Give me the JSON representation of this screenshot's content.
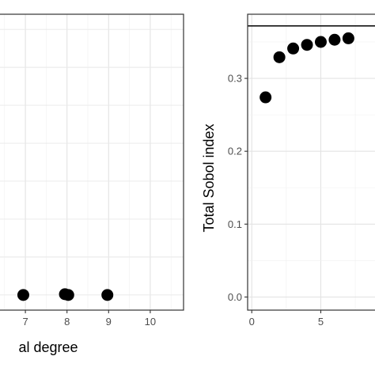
{
  "chart_data": [
    {
      "type": "scatter",
      "panel": "left",
      "xlabel": "al degree",
      "ylabel": "",
      "xlim": [
        6.2,
        10.8
      ],
      "ylim": [
        -0.02,
        0.37
      ],
      "x_ticks": [
        {
          "value": 7,
          "label": "7"
        },
        {
          "value": 8,
          "label": "8"
        },
        {
          "value": 9,
          "label": "9"
        },
        {
          "value": 10,
          "label": "10"
        }
      ],
      "y_ticks": [],
      "minor_x": [
        6.5,
        7.5,
        8.5,
        9.5,
        10.5
      ],
      "grid_y": [
        0.0,
        0.05,
        0.1,
        0.15,
        0.2,
        0.25,
        0.3,
        0.35
      ],
      "grid": true,
      "points": [
        {
          "x": 6.95,
          "y": 0.0
        },
        {
          "x": 7.95,
          "y": 0.001
        },
        {
          "x": 8.03,
          "y": 0.0
        },
        {
          "x": 8.97,
          "y": 0.0
        }
      ],
      "point_color": "#000000"
    },
    {
      "type": "scatter",
      "panel": "right",
      "xlabel": "",
      "ylabel": "Total Sobol index",
      "xlim": [
        -0.3,
        9.5
      ],
      "ylim": [
        -0.018,
        0.388
      ],
      "x_ticks": [
        {
          "value": 0,
          "label": "0"
        },
        {
          "value": 5,
          "label": "5"
        }
      ],
      "y_ticks": [
        {
          "value": 0.0,
          "label": "0.0"
        },
        {
          "value": 0.1,
          "label": "0.1"
        },
        {
          "value": 0.2,
          "label": "0.2"
        },
        {
          "value": 0.3,
          "label": "0.3"
        }
      ],
      "minor_x": [
        2.5,
        7.5
      ],
      "grid_y_minor": [
        0.05,
        0.15,
        0.25,
        0.35
      ],
      "grid": true,
      "hline": 0.372,
      "points": [
        {
          "x": 1,
          "y": 0.274
        },
        {
          "x": 2,
          "y": 0.329
        },
        {
          "x": 3,
          "y": 0.341
        },
        {
          "x": 4,
          "y": 0.346
        },
        {
          "x": 5,
          "y": 0.35
        },
        {
          "x": 6,
          "y": 0.353
        },
        {
          "x": 7,
          "y": 0.355
        }
      ],
      "point_color": "#000000"
    }
  ]
}
